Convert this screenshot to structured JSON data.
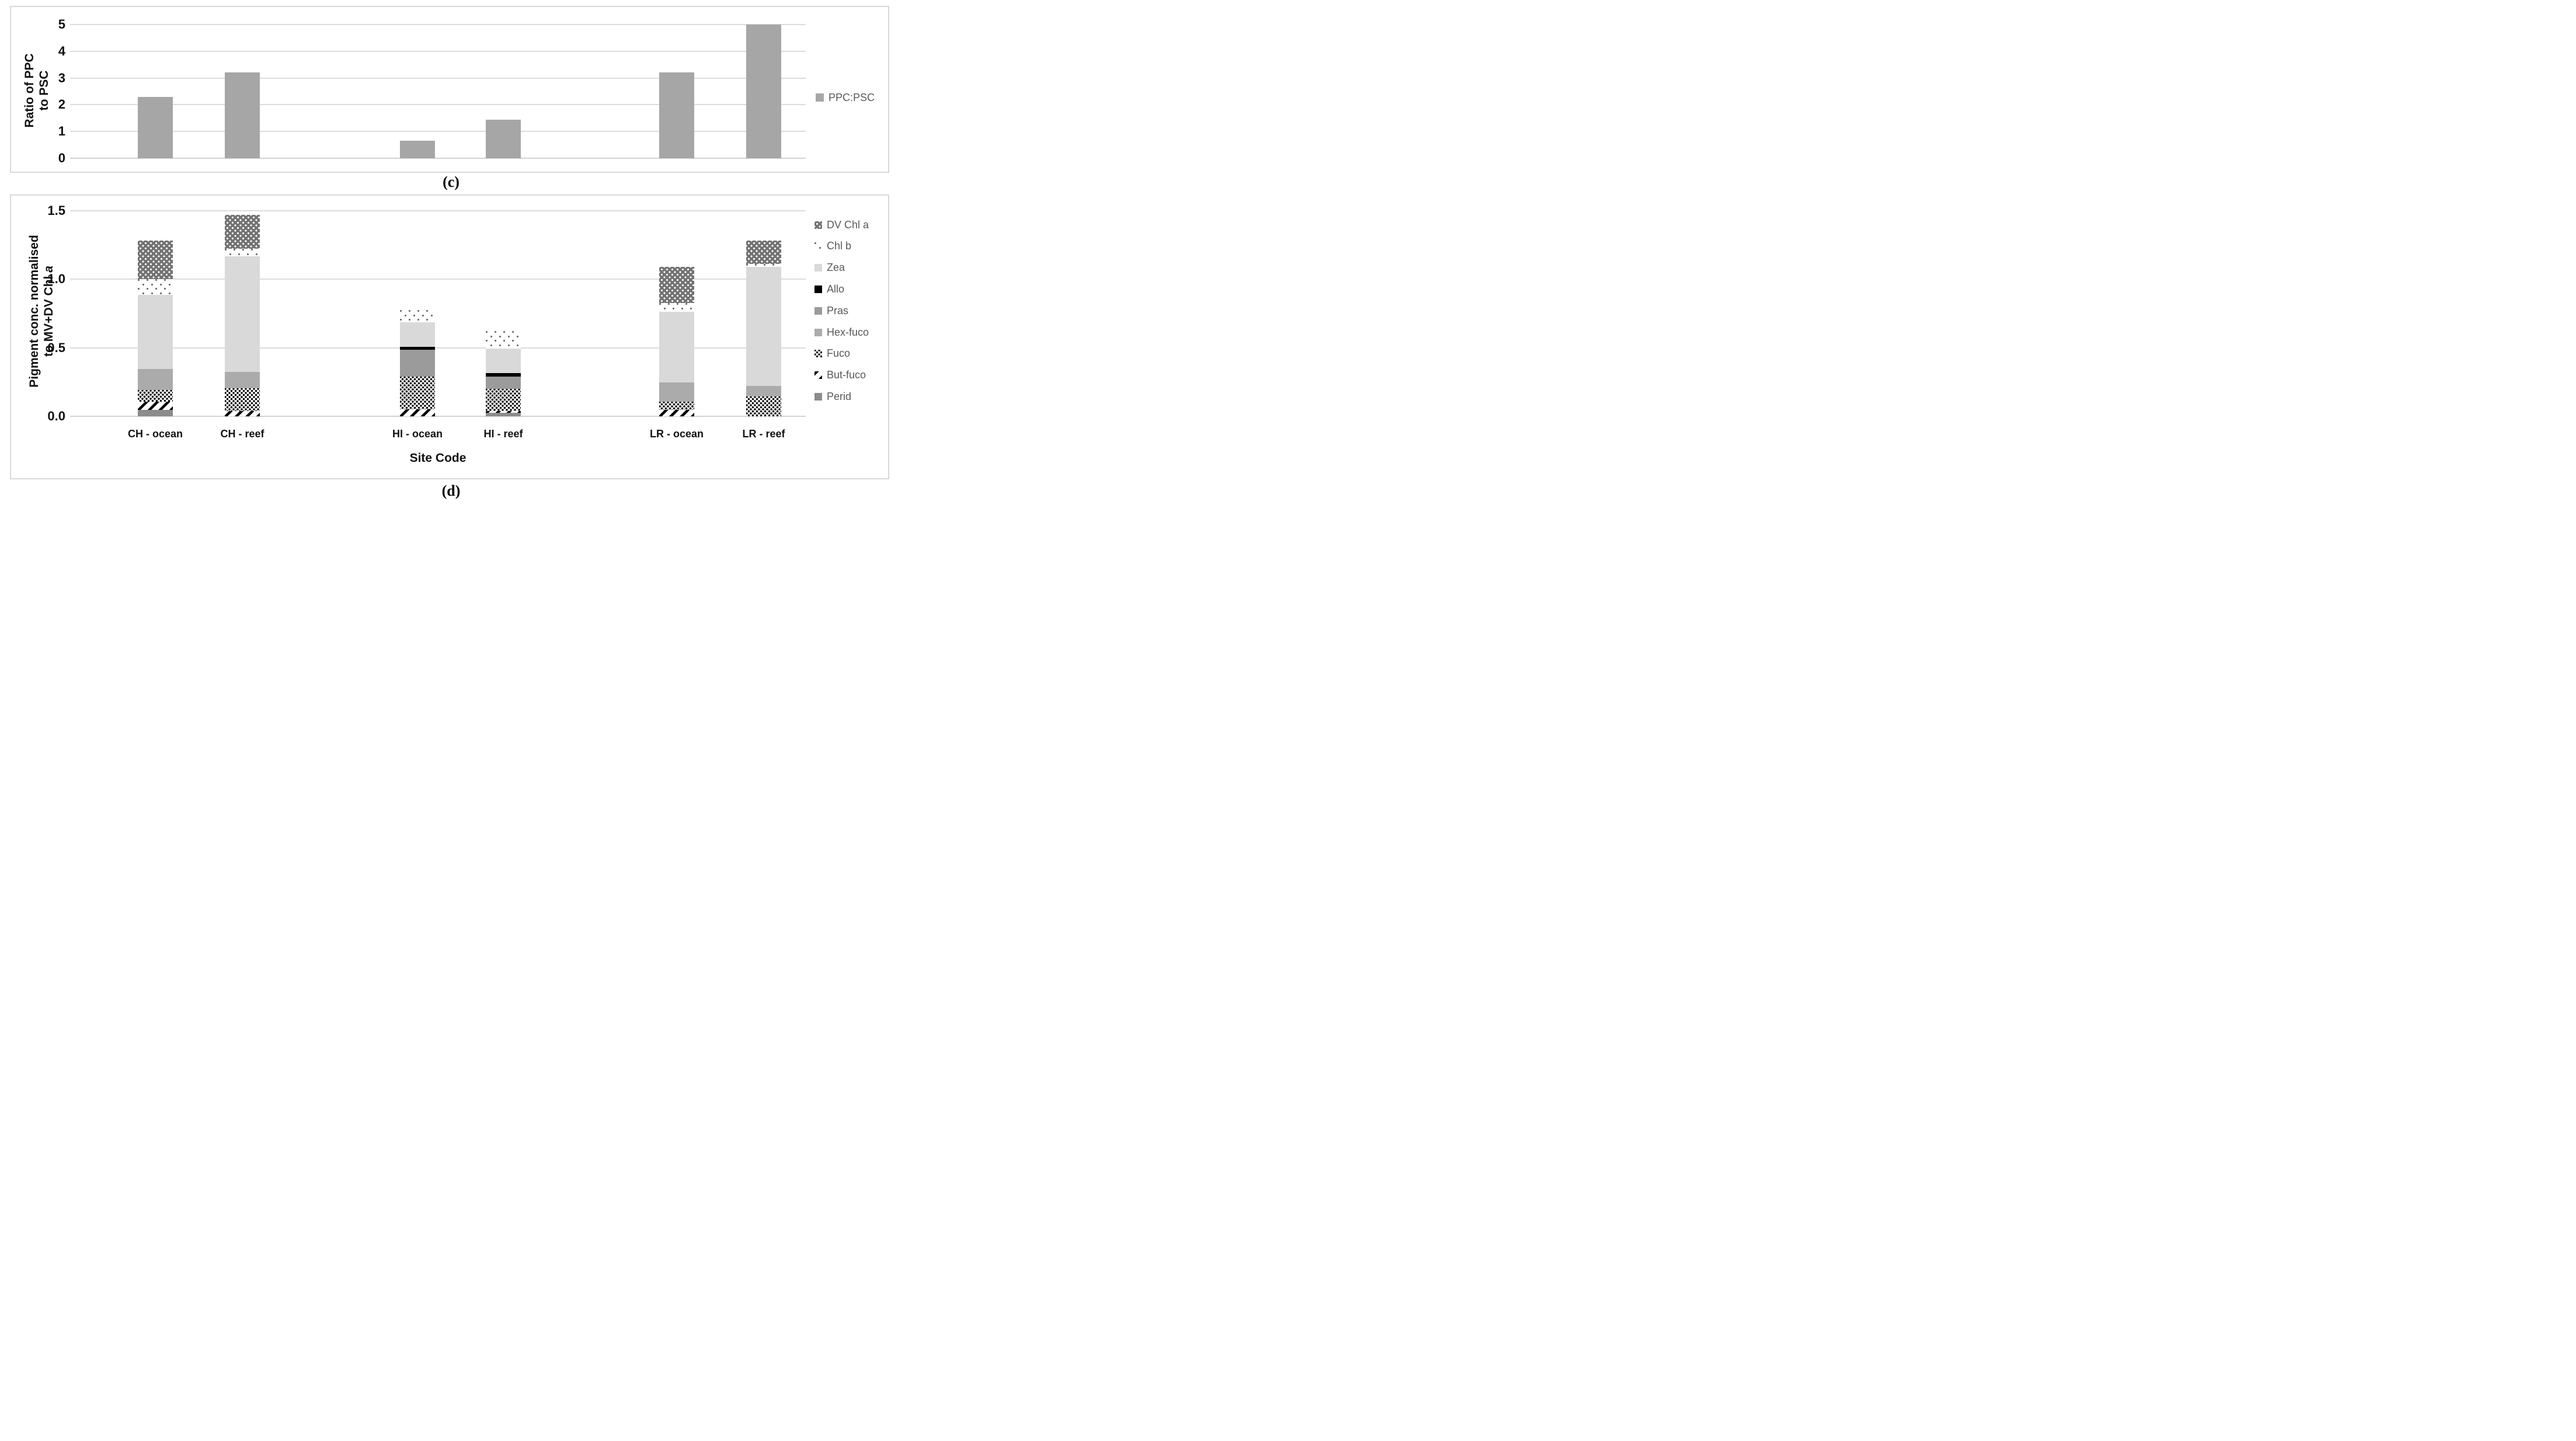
{
  "figure": {
    "caption_c": "(c)",
    "caption_d": "(d)"
  },
  "colors": {
    "ppc_bar": "#a6a6a6",
    "gridline": "#dcdcdc",
    "panel_border": "#d9d9d9",
    "legend_text": "#595959",
    "axis_text": "#111111",
    "zea": "#d9d9d9",
    "allo": "#000000",
    "pras": "#9b9b9b",
    "hex_fuco": "#ababab",
    "perid": "#8c8c8c",
    "dv_chl_a_base": "#737373"
  },
  "chart_data": [
    {
      "id": "c",
      "type": "bar",
      "title": "",
      "ylabel": "Ratio of PPC to PSC",
      "ylabel_line1": "Ratio of PPC",
      "ylabel_line2": "to PSC",
      "xlabel": "",
      "ylim": [
        0,
        5
      ],
      "yticks": [
        0,
        1,
        2,
        3,
        4,
        5
      ],
      "ytick_labels": [
        "0",
        "1",
        "2",
        "3",
        "4",
        "5"
      ],
      "grid": true,
      "legend_position": "right",
      "legend": [
        "PPC:PSC"
      ],
      "categories": [
        "CH - ocean",
        "CH - reef",
        "HI - ocean",
        "HI - reef",
        "LR - ocean",
        "LR - reef"
      ],
      "values": [
        2.3,
        3.2,
        0.65,
        1.45,
        3.2,
        5.0
      ]
    },
    {
      "id": "d",
      "type": "stacked-bar",
      "title": "",
      "ylabel": "Pigment conc. normalised to MV+DV Chl a",
      "ylabel_line1": "Pigment conc. normalised",
      "ylabel_line2_prefix": "to MV+DV Chl ",
      "ylabel_line2_italic": "a",
      "xlabel": "Site Code",
      "ylim": [
        0,
        1.5
      ],
      "yticks": [
        0,
        0.5,
        1.0,
        1.5
      ],
      "ytick_labels": [
        "0.0",
        "0.5",
        "1.0",
        "1.5"
      ],
      "grid": true,
      "legend_position": "right",
      "categories": [
        "CH - ocean",
        "CH - reef",
        "HI - ocean",
        "HI - reef",
        "LR - ocean",
        "LR - reef"
      ],
      "series": [
        {
          "name": "Perid",
          "pattern": "perid",
          "values": [
            0.045,
            0,
            0,
            0.025,
            0,
            0
          ]
        },
        {
          "name": "But-fuco",
          "pattern": "but",
          "values": [
            0.06,
            0.04,
            0.05,
            0.015,
            0.045,
            0
          ]
        },
        {
          "name": "Fuco",
          "pattern": "fuco",
          "values": [
            0.085,
            0.165,
            0.24,
            0.16,
            0.06,
            0.145
          ]
        },
        {
          "name": "Hex-fuco",
          "pattern": "hex",
          "values": [
            0.155,
            0.12,
            0,
            0,
            0.14,
            0.075
          ]
        },
        {
          "name": "Pras",
          "pattern": "pras",
          "values": [
            0,
            0,
            0.195,
            0.09,
            0,
            0
          ]
        },
        {
          "name": "Allo",
          "pattern": "allo",
          "values": [
            0,
            0,
            0.02,
            0.027,
            0,
            0
          ]
        },
        {
          "name": "Zea",
          "pattern": "zea",
          "values": [
            0.54,
            0.84,
            0.18,
            0.175,
            0.515,
            0.87
          ]
        },
        {
          "name": "Chl b",
          "pattern": "chlb",
          "values": [
            0.115,
            0.055,
            0.09,
            0.13,
            0.065,
            0.02
          ]
        },
        {
          "name": "DV Chl a",
          "pattern": "dv",
          "values": [
            0.28,
            0.25,
            0,
            0,
            0.265,
            0.17
          ]
        }
      ],
      "legend": [
        {
          "label": "DV Chl a",
          "pattern": "dv"
        },
        {
          "label": "Chl b",
          "pattern": "chlb"
        },
        {
          "label": "Zea",
          "pattern": "zea"
        },
        {
          "label": "Allo",
          "pattern": "allo"
        },
        {
          "label": "Pras",
          "pattern": "pras"
        },
        {
          "label": "Hex-fuco",
          "pattern": "hex"
        },
        {
          "label": "Fuco",
          "pattern": "fuco"
        },
        {
          "label": "But-fuco",
          "pattern": "but"
        },
        {
          "label": "Perid",
          "pattern": "perid"
        }
      ]
    }
  ]
}
